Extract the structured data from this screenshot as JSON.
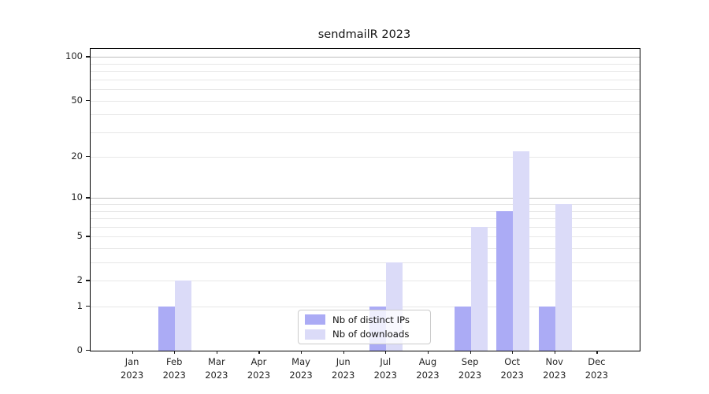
{
  "chart_data": {
    "type": "bar",
    "title": "sendmailR 2023",
    "categories": [
      "Jan",
      "Feb",
      "Mar",
      "Apr",
      "May",
      "Jun",
      "Jul",
      "Aug",
      "Sep",
      "Oct",
      "Nov",
      "Dec"
    ],
    "year_label": "2023",
    "series": [
      {
        "name": "Nb of distinct IPs",
        "color": "#ababf5",
        "values": [
          0,
          1,
          0,
          0,
          0,
          0,
          1,
          0,
          1,
          8,
          1,
          0
        ]
      },
      {
        "name": "Nb of downloads",
        "color": "#dbdbf8",
        "values": [
          0,
          2,
          0,
          0,
          0,
          0,
          3,
          0,
          6,
          22,
          9,
          0
        ]
      }
    ],
    "xlabel": "",
    "ylabel": "",
    "yscale": "log1p",
    "ylim": [
      0,
      114
    ],
    "y_tick_values": [
      0,
      1,
      2,
      5,
      10,
      20,
      50,
      100
    ],
    "y_major_gridlines": [
      10,
      100
    ],
    "y_labeled_minor_gridlines": [
      1,
      2,
      5,
      20,
      50
    ],
    "y_unlabeled_minor_gridlines": [
      3,
      4,
      6,
      7,
      8,
      9,
      30,
      40,
      60,
      70,
      80,
      90
    ],
    "grid": true,
    "legend_position": "bottom-center"
  },
  "colors": {
    "major_grid": "#bdbdbd",
    "minor_grid": "#e7e7e7",
    "spine": "#000000",
    "text": "#262626",
    "legend_border": "#cbcbcb"
  }
}
